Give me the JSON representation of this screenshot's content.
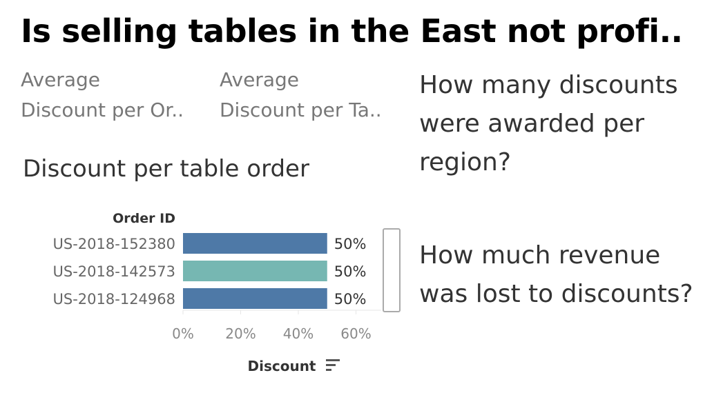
{
  "dashboard": {
    "title": "Is selling tables in the East not profi..",
    "kpis": [
      {
        "line1": "Average",
        "line2": "Discount per Or.."
      },
      {
        "line1": "Average",
        "line2": "Discount per Ta.."
      }
    ],
    "questions": [
      "How many discounts were awarded per region?",
      "How much revenue was lost to discounts?"
    ]
  },
  "chart_data": {
    "type": "bar",
    "orientation": "horizontal",
    "title": "Discount per table order",
    "row_header": "Order ID",
    "xlabel": "Discount",
    "categories": [
      "US-2018-152380",
      "US-2018-142573",
      "US-2018-124968"
    ],
    "values": [
      0.5,
      0.5,
      0.5
    ],
    "data_labels": [
      "50%",
      "50%",
      "50%"
    ],
    "bar_colors": [
      "#4e79a7",
      "#76b7b2",
      "#4e79a7"
    ],
    "xticks": [
      0,
      0.2,
      0.4,
      0.6
    ],
    "xtick_labels": [
      "0%",
      "20%",
      "40%",
      "60%"
    ],
    "xlim": [
      0,
      0.65
    ],
    "grid": false,
    "sort_icon": "sort-descending-icon"
  }
}
